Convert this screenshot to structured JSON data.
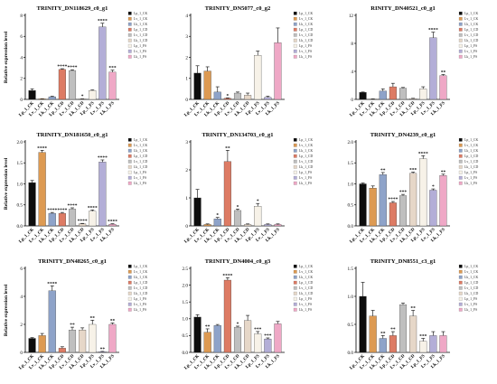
{
  "categories": [
    "Lp_1_CK",
    "Lv_1_CK",
    "Lk_1_CK",
    "Lp_1_CD",
    "Lv_1_CD",
    "Lk_1_CD",
    "Lp_1_FS",
    "Lv_1_FS",
    "Lk_1_FS"
  ],
  "colors": [
    "#0d0d0d",
    "#dd9a52",
    "#8ea3c9",
    "#dd7b64",
    "#bfbfbf",
    "#e6d7c8",
    "#f7f2e8",
    "#b3aed7",
    "#efa8c6"
  ],
  "chart_data": [
    {
      "type": "bar",
      "title": "TRINITY_DN118629_c0_g1",
      "ylabel": "Relative expression level",
      "ylim": [
        0,
        8
      ],
      "yticks": [
        0,
        2,
        4,
        6,
        8
      ],
      "values": [
        0.85,
        0.05,
        0.25,
        2.85,
        2.75,
        0.05,
        0.85,
        6.9,
        2.6
      ],
      "errors": [
        0.15,
        0.02,
        0.05,
        0.07,
        0.07,
        0.02,
        0.05,
        0.35,
        0.18
      ],
      "marks": [
        "",
        "",
        "",
        "****",
        "****",
        "*",
        "",
        "****",
        "***"
      ]
    },
    {
      "type": "bar",
      "title": "TRINITY_DN5077_c0_g2",
      "ylabel": "",
      "ylim": [
        0,
        4
      ],
      "yticks": [
        0,
        1,
        2,
        3,
        4
      ],
      "values": [
        1.25,
        1.35,
        0.35,
        0.05,
        0.3,
        0.2,
        2.1,
        0.1,
        2.7
      ],
      "errors": [
        0.35,
        0.2,
        0.25,
        0.02,
        0.05,
        0.1,
        0.2,
        0.05,
        0.7
      ],
      "marks": [
        "",
        "",
        "",
        "*",
        "",
        "",
        "",
        "",
        ""
      ]
    },
    {
      "type": "bar",
      "title": "RINITY_DN40521_c0_g1",
      "ylabel": "",
      "ylim": [
        0,
        12
      ],
      "yticks": [
        0,
        4,
        8,
        12
      ],
      "values": [
        1.0,
        0.05,
        1.2,
        1.8,
        1.6,
        0.1,
        1.5,
        8.8,
        3.4
      ],
      "errors": [
        0.05,
        0.02,
        0.3,
        0.5,
        0.1,
        0.05,
        0.3,
        0.8,
        0.15
      ],
      "marks": [
        "",
        "",
        "",
        "",
        "",
        "",
        "",
        "****",
        "**"
      ]
    },
    {
      "type": "bar",
      "title": "TRINITY_DN181650_c0_g1",
      "ylabel": "Relative expression level",
      "ylim": [
        0,
        2.0
      ],
      "yticks": [
        0.0,
        0.5,
        1.0,
        1.5,
        2.0
      ],
      "values": [
        1.03,
        1.75,
        0.3,
        0.3,
        0.4,
        0.05,
        0.35,
        1.52,
        0.04
      ],
      "errors": [
        0.05,
        0.05,
        0.02,
        0.02,
        0.03,
        0.01,
        0.03,
        0.05,
        0.01
      ],
      "marks": [
        "",
        "****",
        "****",
        "****",
        "****",
        "****",
        "****",
        "****",
        "****"
      ]
    },
    {
      "type": "bar",
      "title": "TRINITY_DN134703_c0_g1",
      "ylabel": "",
      "ylim": [
        0,
        3
      ],
      "yticks": [
        0,
        1,
        2,
        3
      ],
      "values": [
        1.0,
        0.05,
        0.25,
        2.3,
        0.55,
        0.05,
        0.7,
        0.05,
        0.05
      ],
      "errors": [
        0.3,
        0.02,
        0.05,
        0.4,
        0.05,
        0.02,
        0.1,
        0.02,
        0.02
      ],
      "marks": [
        "",
        "",
        "*",
        "**",
        "*",
        "",
        "*",
        "",
        ""
      ]
    },
    {
      "type": "bar",
      "title": "TRINITY_DN4239_c0_g1",
      "ylabel": "",
      "ylim": [
        0,
        2.0
      ],
      "yticks": [
        0.0,
        0.5,
        1.0,
        1.5,
        2.0
      ],
      "values": [
        1.0,
        0.9,
        1.22,
        0.55,
        0.72,
        1.25,
        1.6,
        0.85,
        1.2
      ],
      "errors": [
        0.02,
        0.05,
        0.05,
        0.03,
        0.03,
        0.03,
        0.07,
        0.03,
        0.03
      ],
      "marks": [
        "",
        "",
        "**",
        "****",
        "***",
        "***",
        "****",
        "*",
        "**"
      ]
    },
    {
      "type": "bar",
      "title": "TRINITY_DN48265_c0_g1",
      "ylabel": "Relative expression level",
      "ylim": [
        0,
        6
      ],
      "yticks": [
        0,
        2,
        4,
        6
      ],
      "values": [
        1.0,
        1.2,
        4.4,
        0.3,
        1.6,
        1.6,
        2.0,
        0.05,
        2.0
      ],
      "errors": [
        0.05,
        0.15,
        0.35,
        0.1,
        0.2,
        0.15,
        0.3,
        0.02,
        0.1
      ],
      "marks": [
        "",
        "",
        "****",
        "",
        "**",
        "",
        "**",
        "**",
        "**"
      ]
    },
    {
      "type": "bar",
      "title": "TRINITY_DN4004_c0_g3",
      "ylabel": "",
      "ylim": [
        0,
        2.5
      ],
      "yticks": [
        0.0,
        0.5,
        1.0,
        1.5,
        2.0,
        2.5
      ],
      "values": [
        1.05,
        0.6,
        0.8,
        2.15,
        0.75,
        0.95,
        0.55,
        0.4,
        0.85
      ],
      "errors": [
        0.07,
        0.1,
        0.03,
        0.07,
        0.03,
        0.15,
        0.07,
        0.03,
        0.07
      ],
      "marks": [
        "",
        "**",
        "",
        "****",
        "*",
        "",
        "***",
        "***",
        ""
      ]
    },
    {
      "type": "bar",
      "title": "TRINITY_DN8551_c3_g1",
      "ylabel": "",
      "ylim": [
        0,
        1.5
      ],
      "yticks": [
        0.0,
        0.5,
        1.0,
        1.5
      ],
      "values": [
        1.0,
        0.65,
        0.25,
        0.3,
        0.85,
        0.65,
        0.2,
        0.3,
        0.3
      ],
      "errors": [
        0.25,
        0.1,
        0.05,
        0.07,
        0.03,
        0.1,
        0.05,
        0.07,
        0.07
      ],
      "marks": [
        "",
        "",
        "**",
        "**",
        "",
        "**",
        "***",
        "",
        ""
      ]
    }
  ]
}
